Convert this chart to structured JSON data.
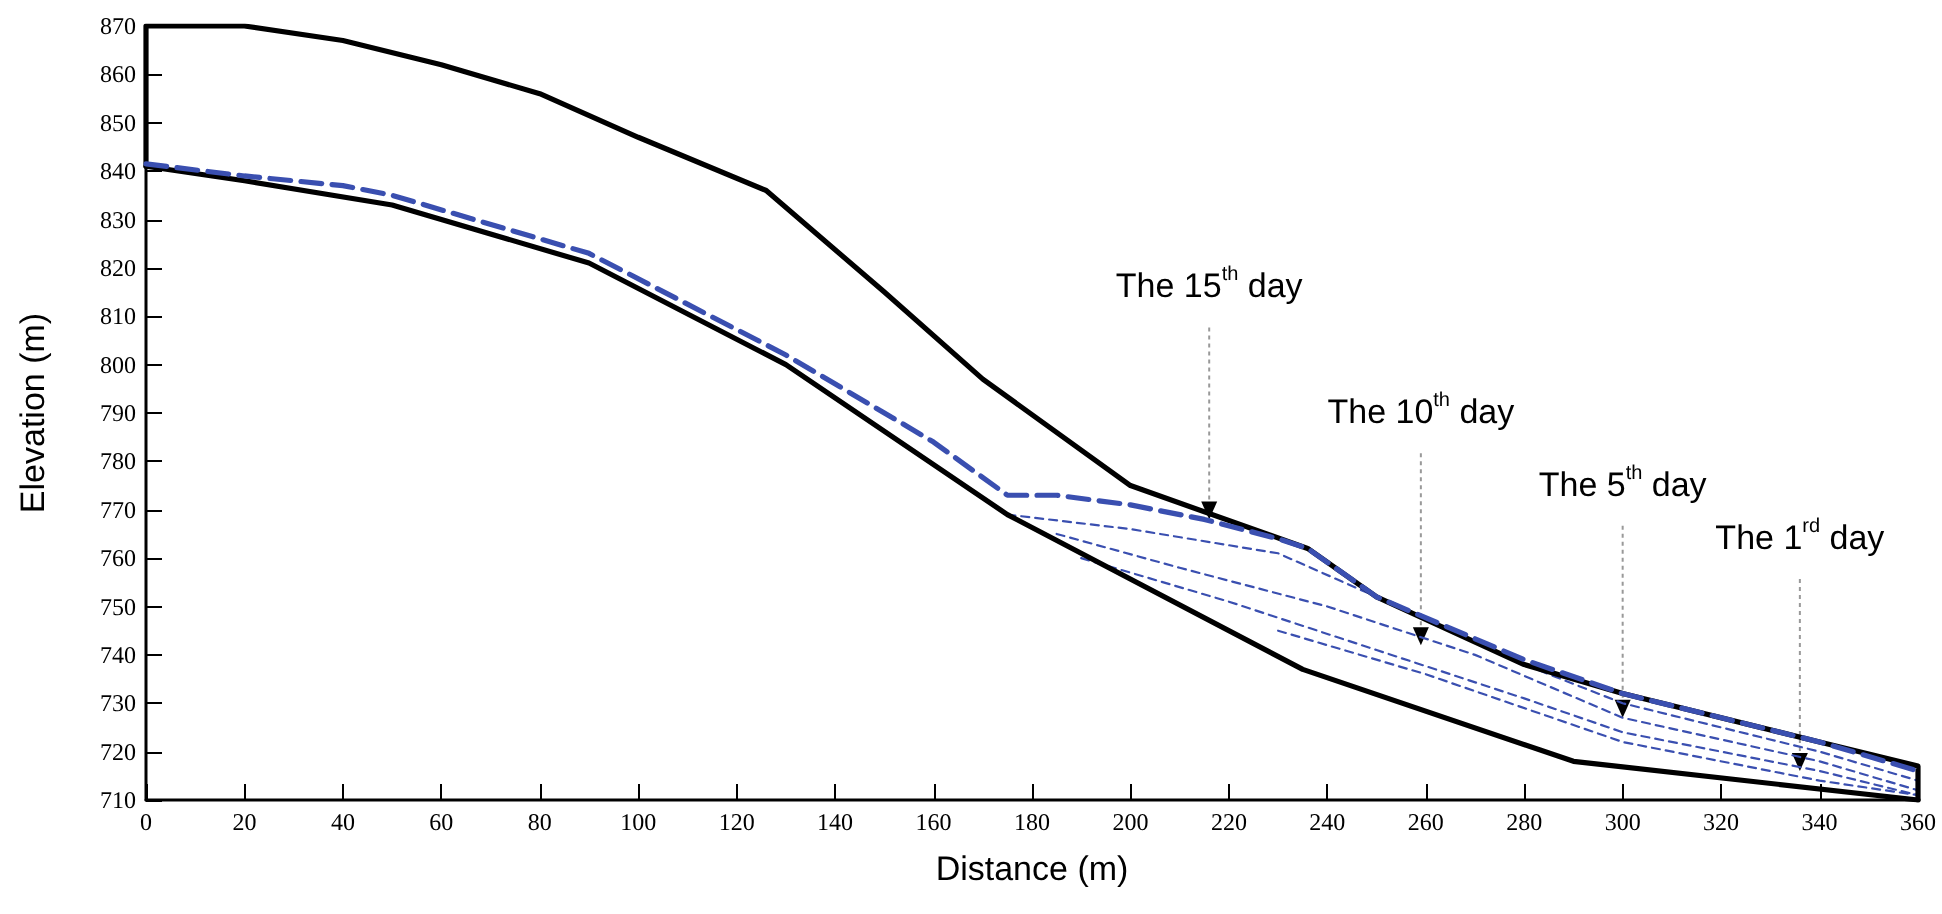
{
  "chart_data": {
    "type": "line",
    "xlabel": "Distance (m)",
    "ylabel": "Elevation (m)",
    "xlim": [
      0,
      360
    ],
    "xticks": [
      0,
      20,
      40,
      60,
      80,
      100,
      120,
      140,
      160,
      180,
      200,
      220,
      240,
      260,
      280,
      300,
      320,
      340,
      360
    ],
    "ylim": [
      710,
      870
    ],
    "yticks": [
      710,
      720,
      730,
      740,
      750,
      760,
      770,
      780,
      790,
      800,
      810,
      820,
      830,
      840,
      850,
      860,
      870
    ],
    "grid": false,
    "marker": "none",
    "series": [
      {
        "color": "#000000",
        "line_style": "solid",
        "x": [
          0,
          0,
          20,
          40,
          60,
          80,
          100,
          126,
          150,
          170,
          200,
          236,
          250,
          280,
          300,
          340,
          360,
          360
        ],
        "values": [
          841,
          870,
          870,
          867,
          862,
          856,
          847,
          836,
          815,
          797,
          775,
          762,
          752,
          738,
          732,
          722,
          717,
          710
        ]
      },
      {
        "color": "#000000",
        "line_style": "solid",
        "x": [
          0,
          20,
          50,
          90,
          130,
          175,
          235,
          290,
          360
        ],
        "values": [
          841,
          838,
          833,
          821,
          800,
          769,
          737,
          718,
          710
        ]
      },
      {
        "color": "#3a4fb0",
        "line_style": "dashed",
        "x": [
          0,
          20,
          40,
          50,
          80,
          90,
          130,
          160,
          175,
          185,
          200,
          215,
          230,
          236,
          250,
          280,
          300,
          340,
          360
        ],
        "values": [
          841.5,
          839,
          837,
          835,
          826,
          823,
          802,
          784,
          773,
          773,
          771,
          768,
          764,
          762,
          752,
          739,
          732,
          722,
          716
        ]
      },
      {
        "color": "#3a4fb0",
        "line_style": "dashed",
        "x": [
          175,
          200,
          230,
          250,
          280,
          300,
          340,
          360
        ],
        "values": [
          769,
          766,
          761,
          752,
          738,
          730,
          720,
          714
        ]
      },
      {
        "color": "#3a4fb0",
        "line_style": "dashed",
        "x": [
          185,
          210,
          240,
          270,
          300,
          340,
          360
        ],
        "values": [
          765,
          758,
          750,
          740,
          727,
          718,
          712
        ]
      },
      {
        "color": "#3a4fb0",
        "line_style": "dashed",
        "x": [
          190,
          220,
          250,
          280,
          300,
          340,
          360
        ],
        "values": [
          760,
          751,
          741,
          731,
          724,
          716,
          711
        ]
      },
      {
        "color": "#3a4fb0",
        "line_style": "dashed",
        "x": [
          230,
          260,
          300,
          340,
          360
        ],
        "values": [
          745,
          736,
          722,
          714,
          711
        ]
      }
    ],
    "annotations": [
      {
        "text": "The 15$^{th}$ day",
        "x": 216,
        "y": 768
      },
      {
        "text": "The 10$^{th}$ day",
        "x": 259,
        "y": 742
      },
      {
        "text": "The 5$^{th}$ day",
        "x": 300,
        "y": 727
      },
      {
        "text": "The 1$^{rd}$ day",
        "x": 336,
        "y": 716
      }
    ]
  }
}
